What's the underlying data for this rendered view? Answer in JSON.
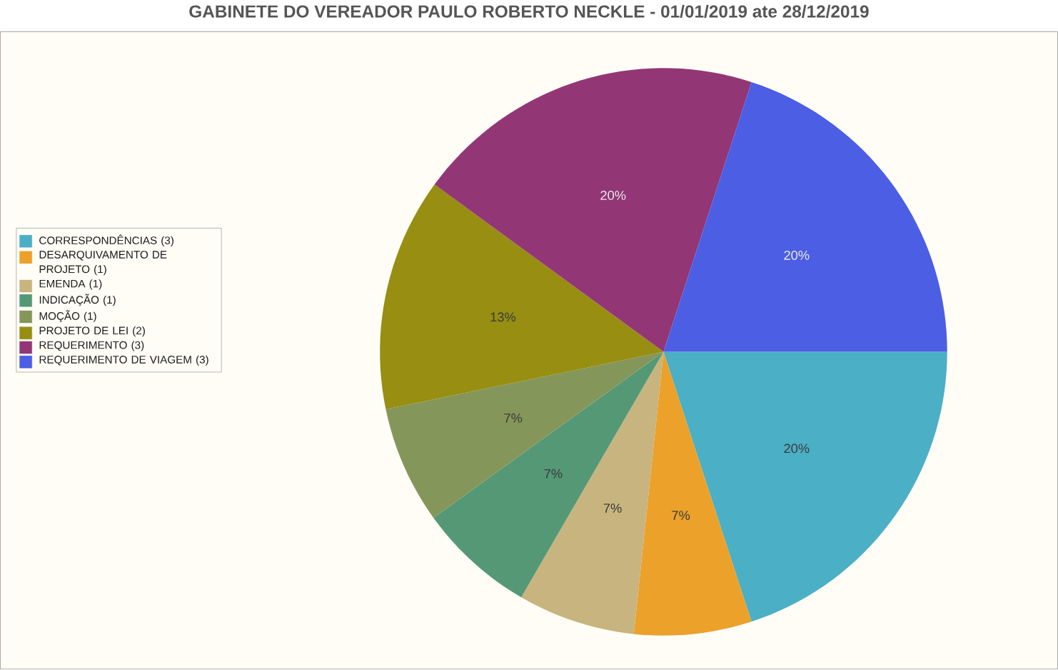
{
  "chart_data": {
    "type": "pie",
    "title": "GABINETE DO VEREADOR PAULO ROBERTO NECKLE - 01/01/2019 ate 28/12/2019",
    "categories": [
      "CORRESPONDÊNCIAS (3)",
      "DESARQUIVAMENTO DE PROJETO (1)",
      "EMENDA (1)",
      "INDICAÇÃO (1)",
      "MOÇÃO (1)",
      "PROJETO DE LEI (2)",
      "REQUERIMENTO (3)",
      "REQUERIMENTO DE VIAGEM (3)"
    ],
    "values": [
      20,
      6.7,
      6.7,
      6.7,
      6.7,
      13.3,
      20,
      20
    ],
    "value_labels": [
      "20%",
      "7%",
      "7%",
      "7%",
      "7%",
      "13%",
      "20%",
      "20%"
    ],
    "colors": [
      "#4bafc6",
      "#eba12a",
      "#c8b47e",
      "#559876",
      "#85965a",
      "#978e12",
      "#933676",
      "#4b5ee4"
    ],
    "legend": "left"
  }
}
